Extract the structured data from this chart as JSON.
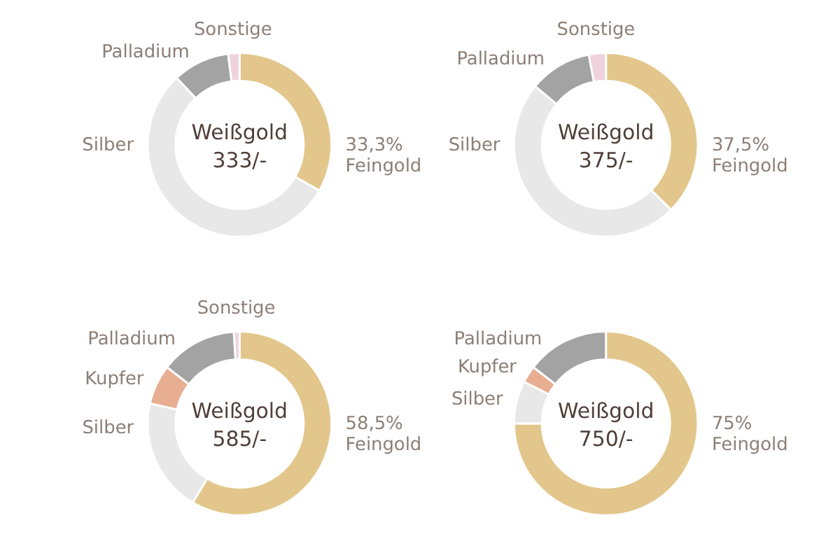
{
  "chart_data": [
    {
      "type": "donut",
      "title": "Weißgold",
      "subtitle": "333/-",
      "categories": [
        "Feingold",
        "Silber",
        "Palladium",
        "Sonstige"
      ],
      "values": [
        33.3,
        54.7,
        10,
        2
      ],
      "colors": [
        "#e3c68b",
        "#e8e8e8",
        "#a3a3a3",
        "#efd3dc"
      ],
      "value_labels": [
        "33,3%",
        null,
        null,
        null
      ]
    },
    {
      "type": "donut",
      "title": "Weißgold",
      "subtitle": "375/-",
      "categories": [
        "Feingold",
        "Silber",
        "Palladium",
        "Sonstige"
      ],
      "values": [
        37.5,
        48.5,
        11,
        3
      ],
      "colors": [
        "#e3c68b",
        "#e8e8e8",
        "#a3a3a3",
        "#efd3dc"
      ],
      "value_labels": [
        "37,5%",
        null,
        null,
        null
      ]
    },
    {
      "type": "donut",
      "title": "Weißgold",
      "subtitle": "585/-",
      "categories": [
        "Feingold",
        "Silber",
        "Kupfer",
        "Palladium",
        "Sonstige"
      ],
      "values": [
        58.5,
        20,
        7,
        13.5,
        1
      ],
      "colors": [
        "#e3c68b",
        "#e8e8e8",
        "#e8ae91",
        "#a3a3a3",
        "#efd3dc"
      ],
      "value_labels": [
        "58,5%",
        null,
        null,
        null,
        null
      ]
    },
    {
      "type": "donut",
      "title": "Weißgold",
      "subtitle": "750/-",
      "categories": [
        "Feingold",
        "Silber",
        "Kupfer",
        "Palladium"
      ],
      "values": [
        75,
        7.5,
        3,
        14.5
      ],
      "colors": [
        "#e3c68b",
        "#e8e8e8",
        "#e8ae91",
        "#a3a3a3"
      ],
      "value_labels": [
        "75%",
        null,
        null,
        null
      ]
    }
  ]
}
